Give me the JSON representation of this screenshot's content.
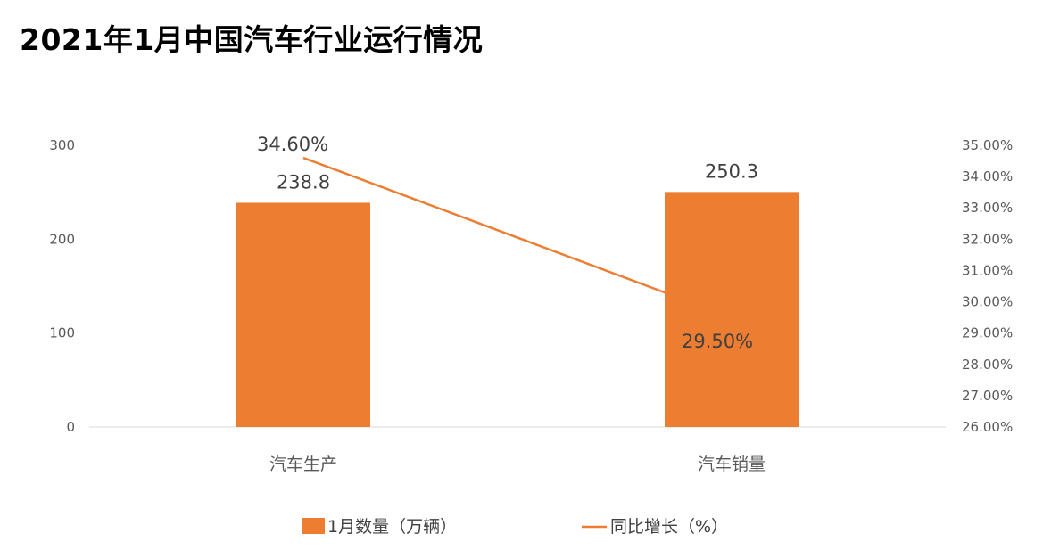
{
  "chart_data": {
    "type": "bar",
    "title": "2021年1月中国汽车行业运行情况",
    "categories": [
      "汽车生产",
      "汽车销量"
    ],
    "series": [
      {
        "name": "1月数量（万辆）",
        "type": "bar",
        "axis": "left",
        "values": [
          238.8,
          250.3
        ],
        "labels": [
          "238.8",
          "250.3"
        ]
      },
      {
        "name": "同比增长（%）",
        "type": "line",
        "axis": "right",
        "values": [
          34.6,
          29.5
        ],
        "labels": [
          "34.60%",
          "29.50%"
        ]
      }
    ],
    "y_left": {
      "min": 0,
      "max": 300,
      "ticks": [
        0,
        100,
        200,
        300
      ],
      "tick_labels": [
        "0",
        "100",
        "200",
        "300"
      ]
    },
    "y_right": {
      "min": 26,
      "max": 35,
      "ticks": [
        26,
        27,
        28,
        29,
        30,
        31,
        32,
        33,
        34,
        35
      ],
      "tick_labels": [
        "26.00%",
        "27.00%",
        "28.00%",
        "29.00%",
        "30.00%",
        "31.00%",
        "32.00%",
        "33.00%",
        "34.00%",
        "35.00%"
      ]
    },
    "grid": false,
    "legend": "bottom",
    "colors": {
      "bar": "#ED7D31",
      "line": "#ED7D31",
      "axis": "#D9D9D9"
    }
  }
}
